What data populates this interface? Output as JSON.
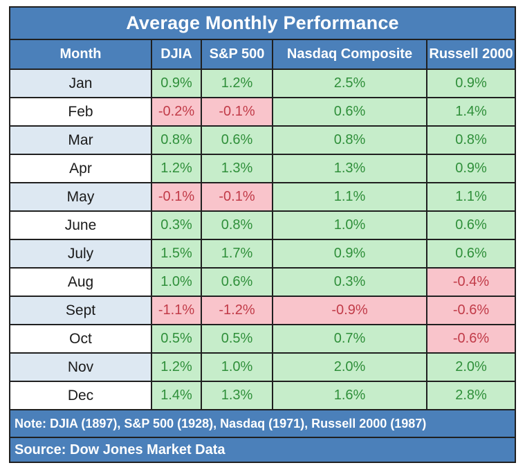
{
  "title": "Average Monthly Performance",
  "columns": [
    "Month",
    "DJIA",
    "S&P 500",
    "Nasdaq Composite",
    "Russell 2000"
  ],
  "rows": [
    {
      "month": "Jan",
      "values": [
        "0.9%",
        "1.2%",
        "2.5%",
        "0.9%"
      ]
    },
    {
      "month": "Feb",
      "values": [
        "-0.2%",
        "-0.1%",
        "0.6%",
        "1.4%"
      ]
    },
    {
      "month": "Mar",
      "values": [
        "0.8%",
        "0.6%",
        "0.8%",
        "0.8%"
      ]
    },
    {
      "month": "Apr",
      "values": [
        "1.2%",
        "1.3%",
        "1.3%",
        "0.9%"
      ]
    },
    {
      "month": "May",
      "values": [
        "-0.1%",
        "-0.1%",
        "1.1%",
        "1.1%"
      ]
    },
    {
      "month": "June",
      "values": [
        "0.3%",
        "0.8%",
        "1.0%",
        "0.6%"
      ]
    },
    {
      "month": "July",
      "values": [
        "1.5%",
        "1.7%",
        "0.9%",
        "0.6%"
      ]
    },
    {
      "month": "Aug",
      "values": [
        "1.0%",
        "0.6%",
        "0.3%",
        "-0.4%"
      ]
    },
    {
      "month": "Sept",
      "values": [
        "-1.1%",
        "-1.2%",
        "-0.9%",
        "-0.6%"
      ]
    },
    {
      "month": "Oct",
      "values": [
        "0.5%",
        "0.5%",
        "0.7%",
        "-0.6%"
      ]
    },
    {
      "month": "Nov",
      "values": [
        "1.2%",
        "1.0%",
        "2.0%",
        "2.0%"
      ]
    },
    {
      "month": "Dec",
      "values": [
        "1.4%",
        "1.3%",
        "1.6%",
        "2.8%"
      ]
    }
  ],
  "note": "Note: DJIA (1897), S&P 500 (1928), Nasdaq (1971), Russell 2000 (1987)",
  "source": "Source: Dow Jones Market Data",
  "colors": {
    "header_blue": "#4b80ba",
    "striped_row_blue": "#dde8f2",
    "positive_bg": "#c6edca",
    "positive_text": "#2f8f3a",
    "negative_bg": "#f9c4cb",
    "negative_text": "#c13b48",
    "border": "#1f1f1f"
  },
  "chart_data": {
    "type": "table",
    "title": "Average Monthly Performance",
    "categories": [
      "Jan",
      "Feb",
      "Mar",
      "Apr",
      "May",
      "June",
      "July",
      "Aug",
      "Sept",
      "Oct",
      "Nov",
      "Dec"
    ],
    "series": [
      {
        "name": "DJIA",
        "values": [
          0.9,
          -0.2,
          0.8,
          1.2,
          -0.1,
          0.3,
          1.5,
          1.0,
          -1.1,
          0.5,
          1.2,
          1.4
        ]
      },
      {
        "name": "S&P 500",
        "values": [
          1.2,
          -0.1,
          0.6,
          1.3,
          -0.1,
          0.8,
          1.7,
          0.6,
          -1.2,
          0.5,
          1.0,
          1.3
        ]
      },
      {
        "name": "Nasdaq Composite",
        "values": [
          2.5,
          0.6,
          0.8,
          1.3,
          1.1,
          1.0,
          0.9,
          0.3,
          -0.9,
          0.7,
          2.0,
          1.6
        ]
      },
      {
        "name": "Russell 2000",
        "values": [
          0.9,
          1.4,
          0.8,
          0.9,
          1.1,
          0.6,
          0.6,
          -0.4,
          -0.6,
          -0.6,
          2.0,
          2.8
        ]
      }
    ],
    "unit": "%",
    "note": "Note: DJIA (1897), S&P 500 (1928), Nasdaq (1971), Russell 2000 (1987)",
    "source": "Source: Dow Jones Market Data",
    "color_coding": "green = positive, red = negative"
  }
}
